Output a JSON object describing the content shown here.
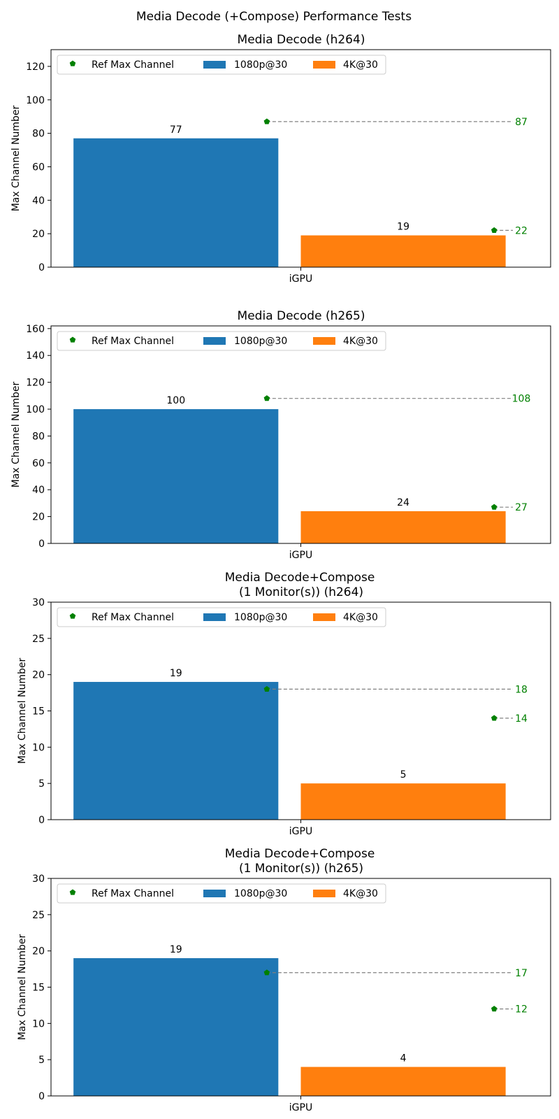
{
  "figure_title": "Media Decode (+Compose) Performance Tests",
  "legend_labels": {
    "ref": "Ref Max Channel",
    "s1080": "1080p@30",
    "s4k": "4K@30"
  },
  "colors": {
    "s1080": "#1f77b4",
    "s4k": "#ff7f0e",
    "ref": "#008000",
    "refline": "#808080"
  },
  "chart_data": [
    {
      "type": "bar",
      "title_lines": [
        "Media Decode (h264)"
      ],
      "ylabel": "Max Channel Number",
      "categories": [
        "iGPU"
      ],
      "ylim": [
        0,
        130
      ],
      "yticks": [
        0,
        20,
        40,
        60,
        80,
        100,
        120
      ],
      "legend_position": "upper-left",
      "series": [
        {
          "name": "1080p@30",
          "values": [
            77
          ],
          "ref": 87
        },
        {
          "name": "4K@30",
          "values": [
            19
          ],
          "ref": 22
        }
      ]
    },
    {
      "type": "bar",
      "title_lines": [
        "Media Decode (h265)"
      ],
      "ylabel": "Max Channel Number",
      "categories": [
        "iGPU"
      ],
      "ylim": [
        0,
        162
      ],
      "yticks": [
        0,
        20,
        40,
        60,
        80,
        100,
        120,
        140,
        160
      ],
      "legend_position": "upper-left",
      "series": [
        {
          "name": "1080p@30",
          "values": [
            100
          ],
          "ref": 108
        },
        {
          "name": "4K@30",
          "values": [
            24
          ],
          "ref": 27
        }
      ]
    },
    {
      "type": "bar",
      "title_lines": [
        "Media Decode+Compose",
        "(1 Monitor(s)) (h264)"
      ],
      "ylabel": "Max Channel Number",
      "categories": [
        "iGPU"
      ],
      "ylim": [
        0,
        30
      ],
      "yticks": [
        0,
        5,
        10,
        15,
        20,
        25,
        30
      ],
      "legend_position": "upper-left",
      "series": [
        {
          "name": "1080p@30",
          "values": [
            19
          ],
          "ref": 18
        },
        {
          "name": "4K@30",
          "values": [
            5
          ],
          "ref": 14
        }
      ]
    },
    {
      "type": "bar",
      "title_lines": [
        "Media Decode+Compose",
        "(1 Monitor(s)) (h265)"
      ],
      "ylabel": "Max Channel Number",
      "categories": [
        "iGPU"
      ],
      "ylim": [
        0,
        30
      ],
      "yticks": [
        0,
        5,
        10,
        15,
        20,
        25,
        30
      ],
      "legend_position": "upper-left",
      "series": [
        {
          "name": "1080p@30",
          "values": [
            19
          ],
          "ref": 17
        },
        {
          "name": "4K@30",
          "values": [
            4
          ],
          "ref": 12
        }
      ]
    }
  ]
}
